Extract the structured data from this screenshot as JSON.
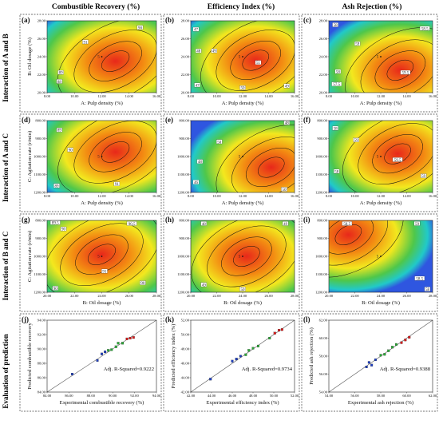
{
  "figure": {
    "columns": [
      "Combustible Recovery (%)",
      "Efficiency Index (%)",
      "Ash Rejection (%)"
    ],
    "rows": [
      "Interaction of A and B",
      "Interaction of A and C",
      "Interaction of B and C",
      "Evaluation of prediction"
    ]
  },
  "colors": {
    "red": "#e8281a",
    "orange": "#f38a12",
    "yellow": "#f3e81e",
    "green": "#4fc74a",
    "cyan": "#21c9c9",
    "blue": "#2f56e0",
    "contour": "#111111",
    "outer": "#444444",
    "marker_red": "#d81b1b",
    "marker_green": "#2aa836",
    "marker_blue": "#1f3fbf"
  },
  "chart_data": [
    {
      "panel": "(a)",
      "type": "heatmap",
      "column": "Combustible Recovery (%)",
      "xlabel": "A: Pulp density (%)",
      "ylabel": "B: Oil dosage (%)",
      "xlim": [
        8,
        16
      ],
      "ylim": [
        20,
        28
      ],
      "xticks": [
        "8.00",
        "10.00",
        "12.00",
        "14.00",
        "16.00"
      ],
      "yticks": [
        "20.00",
        "22.00",
        "24.00",
        "26.00",
        "28.00"
      ],
      "center_point": [
        12,
        24
      ],
      "center_label": "5",
      "optimum": [
        13.0,
        23.5
      ],
      "contour_labels": [
        {
          "text": "91",
          "x": 10.8,
          "y": 25.6
        },
        {
          "text": "90",
          "x": 14.8,
          "y": 27.2
        },
        {
          "text": "89",
          "x": 9.0,
          "y": 22.2
        },
        {
          "text": "88",
          "x": 8.9,
          "y": 21.2
        }
      ]
    },
    {
      "panel": "(b)",
      "type": "heatmap",
      "column": "Efficiency Index (%)",
      "xlabel": "A: Pulp density (%)",
      "ylabel": "",
      "xlim": [
        8,
        16
      ],
      "ylim": [
        20,
        28
      ],
      "xticks": [
        "8.00",
        "10.00",
        "12.00",
        "14.00",
        "16.00"
      ],
      "yticks": [
        "20.00",
        "22.00",
        "24.00",
        "26.00",
        "28.00"
      ],
      "center_point": [
        12,
        24
      ],
      "center_label": "5",
      "optimum": [
        13.0,
        23.6
      ],
      "contour_labels": [
        {
          "text": "47",
          "x": 8.4,
          "y": 27.0
        },
        {
          "text": "48",
          "x": 8.6,
          "y": 24.6
        },
        {
          "text": "49",
          "x": 9.8,
          "y": 24.6
        },
        {
          "text": "47",
          "x": 8.5,
          "y": 20.8
        },
        {
          "text": "51",
          "x": 13.2,
          "y": 23.3
        },
        {
          "text": "50",
          "x": 12.0,
          "y": 20.5
        },
        {
          "text": "49",
          "x": 15.4,
          "y": 20.7
        }
      ]
    },
    {
      "panel": "(c)",
      "type": "heatmap",
      "column": "Ash Rejection (%)",
      "xlabel": "A: Pulp density (%)",
      "ylabel": "",
      "xlim": [
        8,
        16
      ],
      "ylim": [
        20,
        28
      ],
      "xticks": [
        "8.00",
        "10.00",
        "12.00",
        "14.00",
        "16.00"
      ],
      "yticks": [
        "20.00",
        "22.00",
        "24.00",
        "26.00",
        "28.00"
      ],
      "center_point": [
        12,
        24
      ],
      "center_label": "5",
      "optimum": [
        13.5,
        22.5
      ],
      "contour_labels": [
        {
          "text": "58",
          "x": 8.5,
          "y": 27.5
        },
        {
          "text": "58.5",
          "x": 15.4,
          "y": 27.1
        },
        {
          "text": "59",
          "x": 10.2,
          "y": 25.4
        },
        {
          "text": "58",
          "x": 8.7,
          "y": 22.3
        },
        {
          "text": "57.5",
          "x": 8.6,
          "y": 20.9
        },
        {
          "text": "59.5",
          "x": 13.9,
          "y": 22.2
        }
      ]
    },
    {
      "panel": "(d)",
      "type": "heatmap",
      "column": "Combustible Recovery (%)",
      "xlabel": "A: Pulp density (%)",
      "ylabel": "C: Agitation rate (r/min)",
      "xlim": [
        8,
        16
      ],
      "ylim": [
        1200,
        800
      ],
      "xticks": [
        "8.00",
        "10.00",
        "12.00",
        "14.00",
        "16.00"
      ],
      "yticks": [
        "1200.00",
        "1100.00",
        "1000.00",
        "900.00",
        "800.00"
      ],
      "center_point": [
        12,
        1000
      ],
      "center_label": "5",
      "optimum": [
        13.0,
        975
      ],
      "contour_labels": [
        {
          "text": "89",
          "x": 8.9,
          "y": 855
        },
        {
          "text": "90",
          "x": 9.7,
          "y": 965
        },
        {
          "text": "89",
          "x": 8.7,
          "y": 1165
        },
        {
          "text": "91",
          "x": 13.1,
          "y": 1155
        }
      ]
    },
    {
      "panel": "(e)",
      "type": "heatmap",
      "column": "Efficiency Index (%)",
      "xlabel": "A: Pulp density (%)",
      "ylabel": "",
      "xlim": [
        8,
        16
      ],
      "ylim": [
        1200,
        800
      ],
      "xticks": [
        "8.00",
        "10.00",
        "12.00",
        "14.00",
        "16.00"
      ],
      "yticks": [
        "1200.00",
        "1100.00",
        "1000.00",
        "900.00",
        "800.00"
      ],
      "center_point": [
        12,
        1000
      ],
      "center_label": "5",
      "optimum": [
        14.2,
        1060
      ],
      "contour_labels": [
        {
          "text": "48",
          "x": 15.4,
          "y": 815
        },
        {
          "text": "50",
          "x": 10.2,
          "y": 920
        },
        {
          "text": "48",
          "x": 8.7,
          "y": 1030
        },
        {
          "text": "46",
          "x": 8.4,
          "y": 1145
        },
        {
          "text": "50",
          "x": 15.2,
          "y": 1185
        }
      ]
    },
    {
      "panel": "(f)",
      "type": "heatmap",
      "column": "Ash Rejection (%)",
      "xlabel": "A: Pulp density (%)",
      "ylabel": "",
      "xlim": [
        8,
        16
      ],
      "ylim": [
        1200,
        800
      ],
      "xticks": [
        "8.00",
        "10.00",
        "12.00",
        "14.00",
        "16.00"
      ],
      "yticks": [
        "1200.00",
        "1100.00",
        "1000.00",
        "900.00",
        "800.00"
      ],
      "center_point": [
        12,
        1000
      ],
      "center_label": "5",
      "optimum": [
        13.3,
        985
      ],
      "contour_labels": [
        {
          "text": "58",
          "x": 8.5,
          "y": 845
        },
        {
          "text": "59",
          "x": 10.1,
          "y": 910
        },
        {
          "text": "58",
          "x": 8.6,
          "y": 1085
        },
        {
          "text": "59.5",
          "x": 13.3,
          "y": 1020
        },
        {
          "text": "59",
          "x": 15.3,
          "y": 1110
        }
      ]
    },
    {
      "panel": "(g)",
      "type": "heatmap",
      "column": "Combustible Recovery (%)",
      "xlabel": "B: Oil dosage (%)",
      "ylabel": "C: Agitation rate (r/min)",
      "xlim": [
        20,
        28
      ],
      "ylim": [
        1200,
        800
      ],
      "xticks": [
        "20.00",
        "22.00",
        "24.00",
        "26.00",
        "28.00"
      ],
      "yticks": [
        "1200.00",
        "1100.00",
        "1000.00",
        "900.00",
        "800.00"
      ],
      "center_point": [
        24,
        1000
      ],
      "center_label": "5",
      "optimum": [
        24.0,
        990
      ],
      "contour_labels": [
        {
          "text": "89.5",
          "x": 20.6,
          "y": 815
        },
        {
          "text": "90",
          "x": 21.2,
          "y": 850
        },
        {
          "text": "90.5",
          "x": 26.2,
          "y": 820
        },
        {
          "text": "91",
          "x": 24.2,
          "y": 1085
        },
        {
          "text": "90",
          "x": 27.0,
          "y": 1150
        },
        {
          "text": "90",
          "x": 20.6,
          "y": 1180
        }
      ]
    },
    {
      "panel": "(h)",
      "type": "heatmap",
      "column": "Efficiency Index (%)",
      "xlabel": "B: Oil dosage (%)",
      "ylabel": "",
      "xlim": [
        20,
        28
      ],
      "ylim": [
        1200,
        800
      ],
      "xticks": [
        "20.00",
        "22.00",
        "24.00",
        "26.00",
        "28.00"
      ],
      "yticks": [
        "1200.00",
        "1100.00",
        "1000.00",
        "900.00",
        "800.00"
      ],
      "center_point": [
        24,
        1000
      ],
      "center_label": "5",
      "optimum": [
        24.3,
        1000
      ],
      "contour_labels": [
        {
          "text": "48",
          "x": 21.0,
          "y": 820
        },
        {
          "text": "49",
          "x": 27.3,
          "y": 820
        },
        {
          "text": "49",
          "x": 21.0,
          "y": 1160
        },
        {
          "text": "50",
          "x": 24.0,
          "y": 1185
        }
      ]
    },
    {
      "panel": "(i)",
      "type": "heatmap",
      "column": "Ash Rejection (%)",
      "xlabel": "B: Oil dosage (%)",
      "ylabel": "",
      "xlim": [
        20,
        28
      ],
      "ylim": [
        1200,
        800
      ],
      "xticks": [
        "20.00",
        "22.00",
        "24.00",
        "26.00",
        "28.00"
      ],
      "yticks": [
        "1200.00",
        "1100.00",
        "1000.00",
        "900.00",
        "800.00"
      ],
      "center_point": [
        24,
        1000
      ],
      "center_label": "5",
      "optimum": [
        21.5,
        880
      ],
      "contour_labels": [
        {
          "text": "58.5",
          "x": 21.4,
          "y": 820
        },
        {
          "text": "59",
          "x": 26.8,
          "y": 820
        },
        {
          "text": "58.5",
          "x": 27.0,
          "y": 1125
        },
        {
          "text": "58",
          "x": 27.6,
          "y": 1185
        }
      ]
    },
    {
      "panel": "(j)",
      "type": "scatter",
      "column": "Combustible Recovery (%)",
      "xlabel": "Experimental combustible recovery (%)",
      "ylabel": "Predicted combustible recovery",
      "xlim": [
        84,
        94
      ],
      "ylim": [
        84,
        94
      ],
      "xticks": [
        "84.00",
        "86.00",
        "88.00",
        "90.00",
        "92.00",
        "94.00"
      ],
      "yticks": [
        "84.00",
        "86.00",
        "88.00",
        "90.00",
        "92.00",
        "94.00"
      ],
      "annotation": "Adj. R-Squared=0.9222",
      "points": [
        [
          86.3,
          86.5
        ],
        [
          88.6,
          88.4
        ],
        [
          89.0,
          89.3
        ],
        [
          89.3,
          89.6
        ],
        [
          89.6,
          89.8
        ],
        [
          89.9,
          89.9
        ],
        [
          90.3,
          90.3
        ],
        [
          90.5,
          90.8
        ],
        [
          90.9,
          90.8
        ],
        [
          91.3,
          91.4
        ],
        [
          91.6,
          91.5
        ],
        [
          91.9,
          91.6
        ]
      ]
    },
    {
      "panel": "(k)",
      "type": "scatter",
      "column": "Efficiency Index (%)",
      "xlabel": "Experimental efficiency index (%)",
      "ylabel": "Predicted efficiency index (%)",
      "xlim": [
        42,
        52
      ],
      "ylim": [
        42,
        52
      ],
      "xticks": [
        "42.00",
        "44.00",
        "46.00",
        "48.00",
        "50.00",
        "52.00"
      ],
      "yticks": [
        "42.00",
        "44.00",
        "46.00",
        "48.00",
        "50.00",
        "52.00"
      ],
      "annotation": "Adj. R-Squared=0.9734",
      "points": [
        [
          43.9,
          43.8
        ],
        [
          46.0,
          46.3
        ],
        [
          46.4,
          46.6
        ],
        [
          46.8,
          47.0
        ],
        [
          47.3,
          47.2
        ],
        [
          47.6,
          47.8
        ],
        [
          48.0,
          48.1
        ],
        [
          48.5,
          48.4
        ],
        [
          49.6,
          49.5
        ],
        [
          50.1,
          50.2
        ],
        [
          50.5,
          50.6
        ],
        [
          50.8,
          50.7
        ]
      ]
    },
    {
      "panel": "(l)",
      "type": "scatter",
      "column": "Ash Rejection (%)",
      "xlabel": "Experimental ash rejection (%)",
      "ylabel": "Predicted ash rejection (%)",
      "xlim": [
        54,
        62
      ],
      "ylim": [
        54,
        62
      ],
      "xticks": [
        "54.00",
        "56.00",
        "58.00",
        "60.00",
        "62.00"
      ],
      "yticks": [
        "54.00",
        "56.00",
        "58.00",
        "60.00",
        "62.00"
      ],
      "annotation": "Adj. R-Squared=0.9388",
      "points": [
        [
          56.9,
          56.8
        ],
        [
          57.1,
          57.3
        ],
        [
          57.3,
          57.0
        ],
        [
          57.6,
          57.6
        ],
        [
          58.0,
          58.1
        ],
        [
          58.3,
          58.2
        ],
        [
          58.6,
          58.6
        ],
        [
          58.9,
          59.0
        ],
        [
          59.2,
          59.3
        ],
        [
          59.6,
          59.5
        ],
        [
          59.9,
          59.8
        ],
        [
          60.2,
          60.1
        ]
      ]
    }
  ]
}
